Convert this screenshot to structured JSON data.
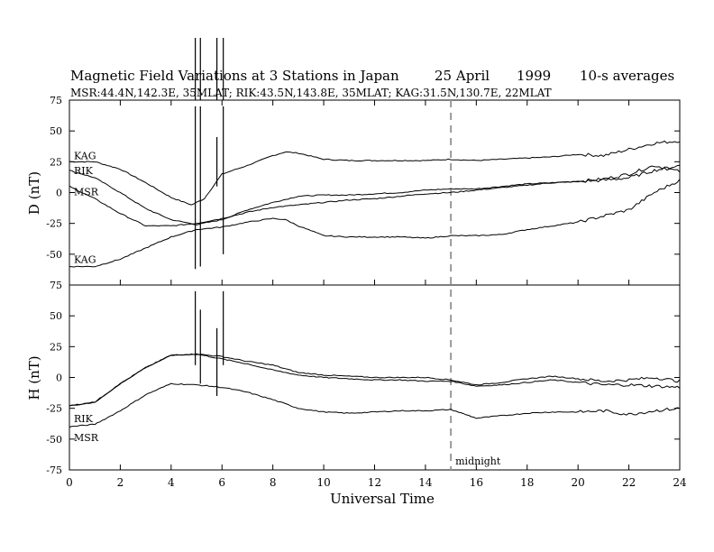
{
  "title": {
    "main": "Magnetic Field Variations at 3 Stations in Japan",
    "date": "25  April",
    "year": "1999",
    "averaging": "10-s averages",
    "stations_line": "MSR:44.4N,142.3E, 35MLAT;   RIK:43.5N,143.8E, 35MLAT;   KAG:31.5N,130.7E, 22MLAT"
  },
  "chart_data": [
    {
      "type": "line",
      "panel": "D",
      "ylabel": "D (nT)",
      "xlabel": "",
      "xlim": [
        0,
        24
      ],
      "ylim": [
        -75,
        75
      ],
      "yticks": [
        -75,
        -50,
        -25,
        0,
        25,
        50,
        75
      ],
      "xticks": [
        0,
        2,
        4,
        6,
        8,
        10,
        12,
        14,
        16,
        18,
        20,
        22,
        24
      ],
      "grid": false,
      "series": [
        {
          "name": "KAG",
          "label_offset": "upper",
          "x": [
            0,
            1,
            2,
            3,
            4,
            4.8,
            5.3,
            6,
            7,
            8,
            8.5,
            9,
            10,
            11,
            12,
            13,
            14,
            15,
            16,
            17,
            18,
            19,
            20,
            21,
            22,
            23,
            24
          ],
          "y": [
            25,
            25,
            19,
            8,
            -4,
            -10,
            -5,
            15,
            22,
            30,
            33,
            32,
            27,
            26,
            26,
            26,
            26,
            27,
            26,
            27,
            28,
            29,
            31,
            30,
            35,
            40,
            42
          ]
        },
        {
          "name": "RIK",
          "x": [
            0,
            1,
            2,
            3,
            4,
            5,
            6,
            7,
            8,
            9,
            10,
            11,
            12,
            13,
            14,
            15,
            16,
            17,
            18,
            19,
            20,
            21,
            22,
            23,
            24
          ],
          "y": [
            18,
            12,
            0,
            -13,
            -22,
            -26,
            -22,
            -14,
            -8,
            -3,
            -2,
            -2,
            -1,
            0,
            2,
            3,
            3,
            5,
            7,
            8,
            9,
            11,
            15,
            22,
            17
          ]
        },
        {
          "name": "MSR",
          "x": [
            0,
            1,
            2,
            3,
            4,
            5,
            6,
            7,
            8,
            9,
            10,
            11,
            12,
            13,
            14,
            15,
            16,
            17,
            18,
            19,
            20,
            21,
            22,
            23,
            24
          ],
          "y": [
            5,
            -5,
            -17,
            -27,
            -27,
            -25,
            -21,
            -16,
            -12,
            -10,
            -8,
            -6,
            -5,
            -3,
            -1,
            0,
            2,
            4,
            6,
            8,
            9,
            10,
            12,
            18,
            22
          ]
        },
        {
          "name": "KAG",
          "label_offset": "lower",
          "x": [
            0,
            1,
            2,
            3,
            4,
            5,
            6,
            7,
            8,
            8.5,
            9,
            10,
            11,
            12,
            13,
            14,
            15,
            16,
            17,
            18,
            19,
            20,
            21,
            22,
            23,
            24
          ],
          "y": [
            -60,
            -60,
            -54,
            -45,
            -36,
            -30,
            -28,
            -24,
            -21,
            -22,
            -27,
            -35,
            -36,
            -36,
            -36,
            -37,
            -35,
            -35,
            -34,
            -30,
            -27,
            -24,
            -19,
            -14,
            0,
            10
          ]
        }
      ]
    },
    {
      "type": "line",
      "panel": "H",
      "ylabel": "H (nT)",
      "xlabel": "Universal Time",
      "xlim": [
        0,
        24
      ],
      "ylim": [
        -75,
        75
      ],
      "yticks": [
        -75,
        -50,
        -25,
        0,
        25,
        50,
        75
      ],
      "xticks": [
        0,
        2,
        4,
        6,
        8,
        10,
        12,
        14,
        16,
        18,
        20,
        22,
        24
      ],
      "grid": false,
      "series": [
        {
          "name": "RIK",
          "x": [
            0,
            1,
            2,
            3,
            4,
            5,
            6,
            7,
            8,
            9,
            10,
            11,
            12,
            13,
            14,
            15,
            16,
            17,
            18,
            19,
            20,
            21,
            22,
            23,
            24
          ],
          "y": [
            -23,
            -20,
            -5,
            8,
            18,
            19,
            17,
            13,
            10,
            4,
            2,
            1,
            0,
            0,
            0,
            -2,
            -6,
            -4,
            -1,
            1,
            -1,
            -3,
            -2,
            0,
            -3
          ]
        },
        {
          "name": "",
          "x": [
            0,
            1,
            2,
            3,
            4,
            5,
            6,
            7,
            8,
            9,
            10,
            11,
            12,
            13,
            14,
            15,
            16,
            17,
            18,
            19,
            20,
            21,
            22,
            23,
            24
          ],
          "y": [
            -23,
            -20,
            -5,
            8,
            18,
            19,
            15,
            11,
            6,
            2,
            0,
            -1,
            -2,
            -2,
            -3,
            -3,
            -7,
            -6,
            -4,
            -2,
            -4,
            -6,
            -6,
            -7,
            -8
          ]
        },
        {
          "name": "MSR",
          "x": [
            0,
            1,
            2,
            3,
            4,
            5,
            6,
            7,
            8,
            9,
            10,
            11,
            12,
            13,
            14,
            15,
            16,
            17,
            18,
            19,
            20,
            21,
            22,
            23,
            24
          ],
          "y": [
            -40,
            -38,
            -27,
            -14,
            -5,
            -6,
            -8,
            -12,
            -18,
            -25,
            -28,
            -29,
            -28,
            -27,
            -27,
            -26,
            -33,
            -31,
            -29,
            -28,
            -28,
            -27,
            -30,
            -27,
            -25
          ]
        }
      ]
    }
  ],
  "bursts": [
    {
      "x": 4.95,
      "ymin_d": -62,
      "ymax_d": 70,
      "ymin_h": 10,
      "ymax_h": 70
    },
    {
      "x": 5.15,
      "ymin_d": -60,
      "ymax_d": 70,
      "ymin_h": -5,
      "ymax_h": 55
    },
    {
      "x": 5.8,
      "ymin_d": 5,
      "ymax_d": 45,
      "ymin_h": -15,
      "ymax_h": 40
    },
    {
      "x": 6.05,
      "ymin_d": -50,
      "ymax_d": 70,
      "ymin_h": 10,
      "ymax_h": 70
    }
  ],
  "midnight": {
    "x": 15,
    "label": "midnight"
  },
  "colors": {
    "line": "#000000",
    "marker": "#999999",
    "background": "#ffffff"
  }
}
